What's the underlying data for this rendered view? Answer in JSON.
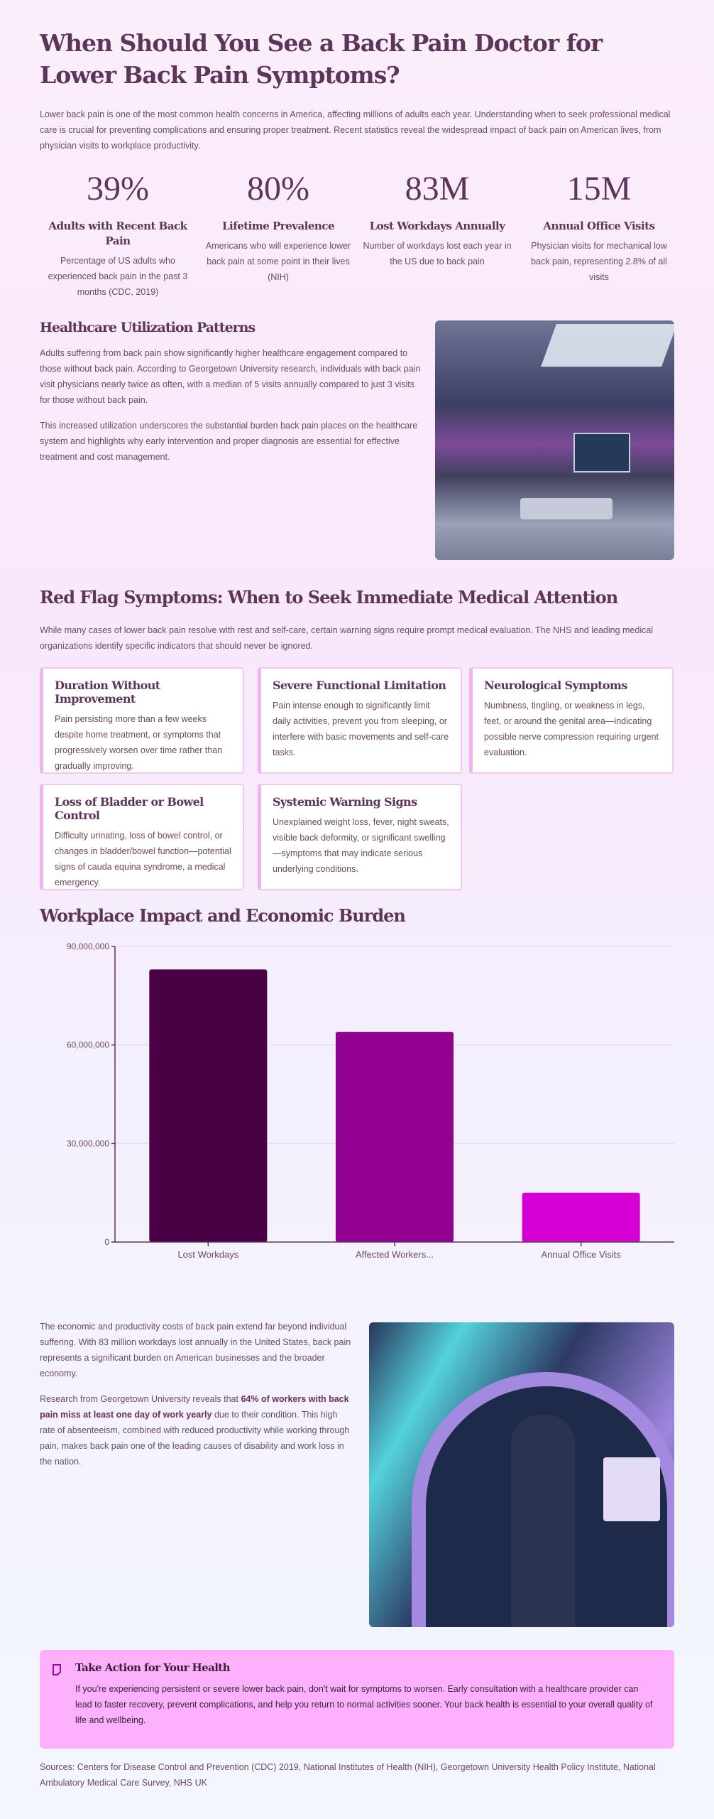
{
  "title": "When Should You See a Back Pain Doctor for Lower Back Pain Symptoms?",
  "intro": "Lower back pain is one of the most common health concerns in America, affecting millions of adults each year. Understanding when to seek professional medical care is crucial for preventing complications and ensuring proper treatment. Recent statistics reveal the widespread impact of back pain on American lives, from physician visits to workplace productivity.",
  "stats": [
    {
      "value": "39%",
      "label": "Adults with Recent Back Pain",
      "desc": "Percentage of US adults who experienced back pain in the past 3 months (CDC, 2019)"
    },
    {
      "value": "80%",
      "label": "Lifetime Prevalence",
      "desc": "Americans who will experience lower back pain at some point in their lives (NIH)"
    },
    {
      "value": "83M",
      "label": "Lost Workdays Annually",
      "desc": "Number of workdays lost each year in the US due to back pain"
    },
    {
      "value": "15M",
      "label": "Annual Office Visits",
      "desc": "Physician visits for mechanical low back pain, representing 2.8% of all visits"
    }
  ],
  "healthcare": {
    "heading": "Healthcare Utilization Patterns",
    "p1": "Adults suffering from back pain show significantly higher healthcare engagement compared to those without back pain. According to Georgetown University research, individuals with back pain visit physicians nearly twice as often, with a median of 5 visits annually compared to just 3 visits for those without back pain.",
    "p2": "This increased utilization underscores the substantial burden back pain places on the healthcare system and highlights why early intervention and proper diagnosis are essential for effective treatment and cost management."
  },
  "redflags": {
    "heading": "Red Flag Symptoms: When to Seek Immediate Medical Attention",
    "intro": "While many cases of lower back pain resolve with rest and self-care, certain warning signs require prompt medical evaluation. The NHS and leading medical organizations identify specific indicators that should never be ignored.",
    "cards": [
      {
        "title": "Duration Without Improvement",
        "text": "Pain persisting more than a few weeks despite home treatment, or symptoms that progressively worsen over time rather than gradually improving."
      },
      {
        "title": "Severe Functional Limitation",
        "text": "Pain intense enough to significantly limit daily activities, prevent you from sleeping, or interfere with basic movements and self-care tasks."
      },
      {
        "title": "Neurological Symptoms",
        "text": "Numbness, tingling, or weakness in legs, feet, or around the genital area—indicating possible nerve compression requiring urgent evaluation."
      },
      {
        "title": "Loss of Bladder or Bowel Control",
        "text": "Difficulty urinating, loss of bowel control, or changes in bladder/bowel function—potential signs of cauda equina syndrome, a medical emergency."
      },
      {
        "title": "Systemic Warning Signs",
        "text": "Unexplained weight loss, fever, night sweats, visible back deformity, or significant swelling—symptoms that may indicate serious underlying conditions."
      }
    ]
  },
  "workplace": {
    "heading": "Workplace Impact and Economic Burden",
    "p1": "The economic and productivity costs of back pain extend far beyond individual suffering. With 83 million workdays lost annually in the United States, back pain represents a significant burden on American businesses and the broader economy.",
    "p2_before": "Research from Georgetown University reveals that ",
    "p2_bold": "64% of workers with back pain miss at least one day of work yearly",
    "p2_after": " due to their condition. This high rate of absenteeism, combined with reduced productivity while working through pain, makes back pain one of the leading causes of disability and work loss in the nation."
  },
  "chart_data": {
    "type": "bar",
    "categories": [
      "Lost Workdays",
      "Affected Workers...",
      "Annual Office Visits"
    ],
    "values": [
      83000000,
      64000000,
      15000000
    ],
    "colors": [
      "#4a0045",
      "#910090",
      "#d600d4"
    ],
    "yticks": [
      "0",
      "30,000,000",
      "60,000,000",
      "90,000,000"
    ],
    "ytick_values": [
      0,
      30000000,
      60000000,
      90000000
    ],
    "ylim": [
      0,
      90000000
    ],
    "grid": true
  },
  "callout": {
    "icon": "note-icon",
    "heading": "Take Action for Your Health",
    "text": "If you're experiencing persistent or severe lower back pain, don't wait for symptoms to worsen. Early consultation with a healthcare provider can lead to faster recovery, prevent complications, and help you return to normal activities sooner. Your back health is essential to your overall quality of life and wellbeing."
  },
  "sources": "Sources: Centers for Disease Control and Prevention (CDC) 2019, National Institutes of Health (NIH), Georgetown University Health Policy Institute, National Ambulatory Medical Care Survey, NHS UK"
}
